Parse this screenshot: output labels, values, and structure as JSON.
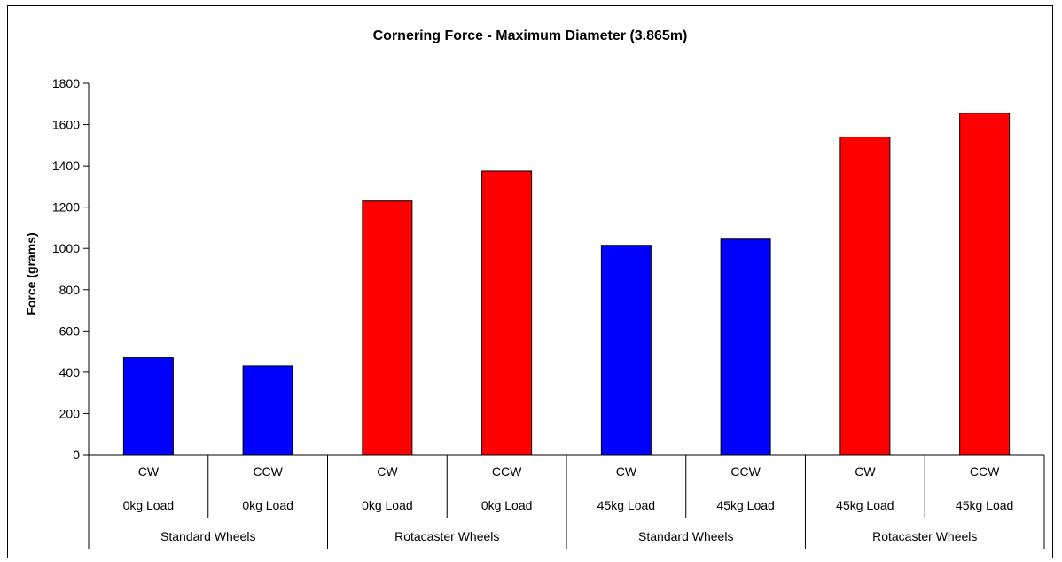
{
  "chart_data": {
    "type": "bar",
    "title": "Cornering Force - Maximum Diameter (3.865m)",
    "xlabel": "",
    "ylabel": "Force (grams)",
    "ylim": [
      0,
      1800
    ],
    "yticks": [
      0,
      200,
      400,
      600,
      800,
      1000,
      1200,
      1400,
      1600,
      1800
    ],
    "grid": false,
    "legend": "none",
    "categories": [
      {
        "direction": "CW",
        "load": "0kg Load",
        "group": "Standard Wheels"
      },
      {
        "direction": "CCW",
        "load": "0kg Load",
        "group": "Standard Wheels"
      },
      {
        "direction": "CW",
        "load": "0kg Load",
        "group": "Rotacaster Wheels"
      },
      {
        "direction": "CCW",
        "load": "0kg Load",
        "group": "Rotacaster Wheels"
      },
      {
        "direction": "CW",
        "load": "45kg Load",
        "group": "Standard Wheels"
      },
      {
        "direction": "CCW",
        "load": "45kg Load",
        "group": "Standard Wheels"
      },
      {
        "direction": "CW",
        "load": "45kg Load",
        "group": "Rotacaster Wheels"
      },
      {
        "direction": "CCW",
        "load": "45kg Load",
        "group": "Rotacaster Wheels"
      }
    ],
    "groups": [
      "Standard Wheels",
      "Rotacaster Wheels",
      "Standard Wheels",
      "Rotacaster Wheels"
    ],
    "values": [
      470,
      430,
      1230,
      1375,
      1015,
      1045,
      1540,
      1655
    ],
    "bar_colors": [
      "#0000ff",
      "#0000ff",
      "#ff0000",
      "#ff0000",
      "#0000ff",
      "#0000ff",
      "#ff0000",
      "#ff0000"
    ]
  }
}
